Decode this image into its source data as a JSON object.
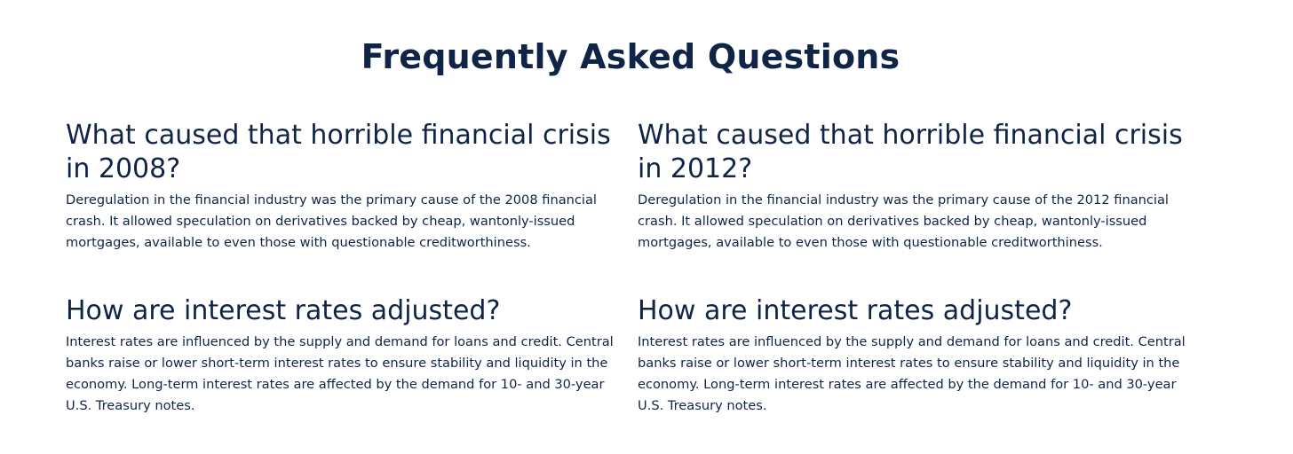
{
  "page_title": "Frequently Asked Questions",
  "faq": [
    {
      "question": "What caused that horrible financial crisis in 2008?",
      "answer": "Deregulation in the financial industry was the primary cause of the 2008 financial crash. It allowed speculation on derivatives backed by cheap, wantonly-issued mortgages, available to even those with questionable creditworthiness."
    },
    {
      "question": "What caused that horrible financial crisis in 2012?",
      "answer": "Deregulation in the financial industry was the primary cause of the 2012 financial crash. It allowed speculation on derivatives backed by cheap, wantonly-issued mortgages, available to even those with questionable creditworthiness."
    },
    {
      "question": "How are interest rates adjusted?",
      "answer": "Interest rates are influenced by the supply and demand for loans and credit. Central banks raise or lower short-term interest rates to ensure stability and liquidity in the economy. Long-term interest rates are affected by the demand for 10- and 30-year U.S. Treasury notes."
    },
    {
      "question": "How are interest rates adjusted?",
      "answer": "Interest rates are influenced by the supply and demand for loans and credit. Central banks raise or lower short-term interest rates to ensure stability and liquidity in the economy. Long-term interest rates are affected by the demand for 10- and 30-year U.S. Treasury notes."
    }
  ],
  "colors": {
    "text": "#0f2447",
    "background": "#ffffff"
  }
}
